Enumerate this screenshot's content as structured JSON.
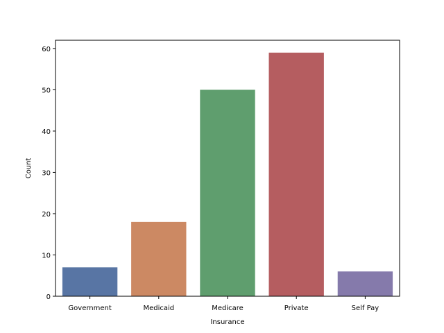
{
  "chart_data": {
    "type": "bar",
    "title": "",
    "xlabel": "Insurance",
    "ylabel": "Count",
    "categories": [
      "Government",
      "Medicaid",
      "Medicare",
      "Private",
      "Self Pay"
    ],
    "values": [
      7,
      18,
      50,
      59,
      6
    ],
    "colors": [
      "#5875a4",
      "#cc8963",
      "#5f9e6e",
      "#b55d60",
      "#857aab"
    ],
    "ylim": [
      0,
      62
    ],
    "yticks": [
      0,
      10,
      20,
      30,
      40,
      50,
      60
    ],
    "grid": false,
    "legend": "none"
  }
}
